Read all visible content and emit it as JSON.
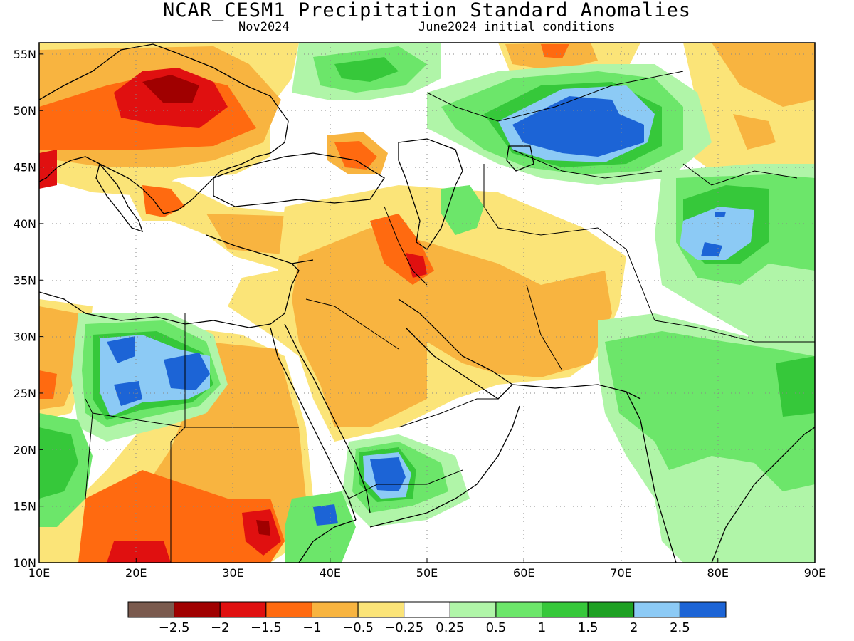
{
  "header": {
    "title": "NCAR_CESM1 Precipitation Standard Anomalies",
    "target_month": "Nov2024",
    "init": "June2024 initial conditions"
  },
  "axes": {
    "lon_ticks": [
      "10E",
      "20E",
      "30E",
      "40E",
      "50E",
      "60E",
      "70E",
      "80E",
      "90E"
    ],
    "lat_ticks": [
      "55N",
      "50N",
      "45N",
      "40N",
      "35N",
      "30N",
      "25N",
      "20N",
      "15N",
      "10N"
    ],
    "lon_range": [
      10,
      90
    ],
    "lat_range": [
      10,
      56
    ]
  },
  "colorbar": {
    "labels": [
      "-2.5",
      "-2",
      "-1.5",
      "-1",
      "-0.5",
      "-0.25",
      "0.25",
      "0.5",
      "1",
      "1.5",
      "2",
      "2.5"
    ],
    "colors": [
      "#7a5a4e",
      "#a00000",
      "#e01010",
      "#ff6a10",
      "#f8b440",
      "#fbe478",
      "#ffffff",
      "#b0f5a8",
      "#6ce66a",
      "#36c83a",
      "#1ea023",
      "#8ccaf5",
      "#1c64d6"
    ]
  },
  "map": {
    "region": "Middle East / Central Asia",
    "variable": "Precipitation standard anomaly",
    "gridlines": "dotted"
  }
}
